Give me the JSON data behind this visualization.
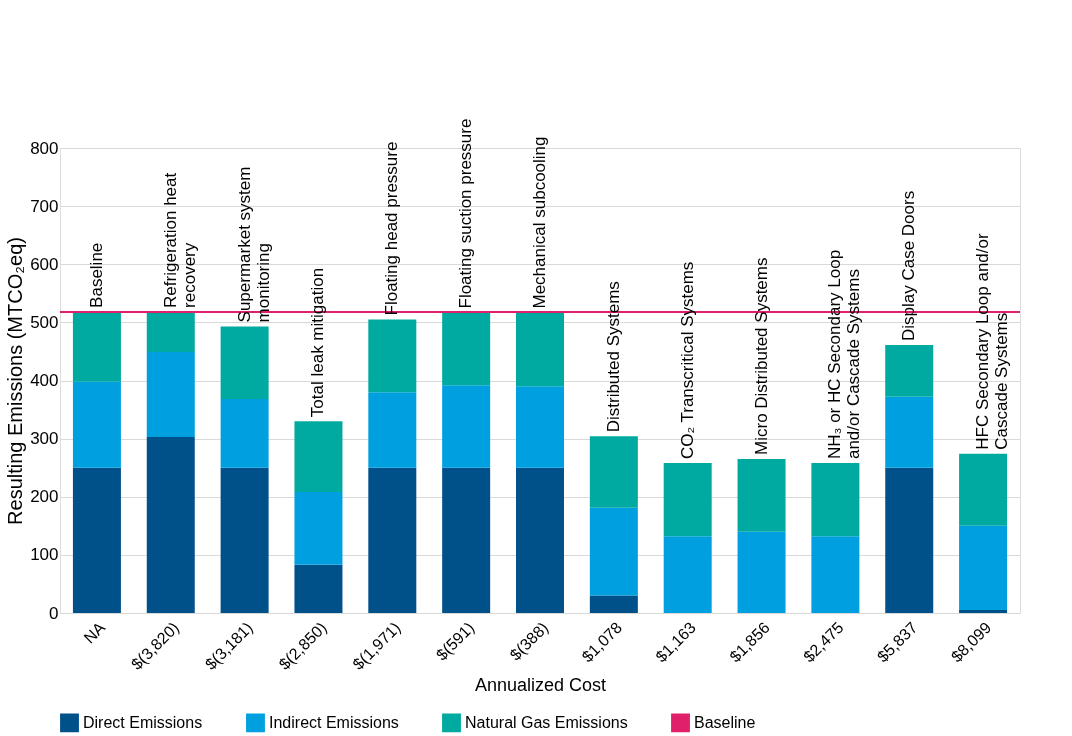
{
  "chart_data": {
    "type": "bar",
    "stacked": true,
    "xlabel": "Annualized  Cost",
    "ylabel": "Resulting  Emissions (MTCO₂eq)",
    "categories": [
      "NA",
      "$(3,820)",
      "$(3,181)",
      "$(2,850)",
      "$(1,971)",
      "$(591)",
      "$(388)",
      "$1,078",
      "$1,163",
      "$1,856",
      "$2,475",
      "$5,837",
      "$8,099"
    ],
    "series": [
      {
        "name": "Direct Emissions",
        "color": "#00508a",
        "values": [
          250,
          303,
          250,
          83,
          250,
          250,
          250,
          30,
          0,
          0,
          0,
          250,
          5
        ]
      },
      {
        "name": "Indirect Emissions",
        "color": "#00a0e0",
        "values": [
          148,
          146,
          118,
          125,
          130,
          142,
          140,
          151,
          132,
          140,
          132,
          122,
          145
        ]
      },
      {
        "name": "Natural Gas Emissions",
        "color": "#00aaa0",
        "values": [
          120,
          69,
          125,
          122,
          125,
          125,
          127,
          123,
          126,
          125,
          126,
          89,
          124
        ]
      }
    ],
    "ref_lines": [
      {
        "axis": "y",
        "value": 518,
        "label": "Baseline",
        "color": "#e0206a"
      }
    ],
    "annotations": [
      {
        "text": "Baseline",
        "x": "NA",
        "y": 518
      },
      {
        "text": "Refrigeration heat\nrecovery",
        "x": "$(3,820)",
        "y": 518
      },
      {
        "text": "Supermarket system\nmonitoring",
        "x": "$(3,181)",
        "y": 493
      },
      {
        "text": "Total leak mitigation",
        "x": "$(2,850)",
        "y": 330
      },
      {
        "text": "Floating head pressure",
        "x": "$(1,971)",
        "y": 505
      },
      {
        "text": "Floating suction pressure",
        "x": "$(591)",
        "y": 517
      },
      {
        "text": "Mechanical subcooling",
        "x": "$(388)",
        "y": 517
      },
      {
        "text": "Distributed Systems",
        "x": "$1,078",
        "y": 304
      },
      {
        "text": "CO₂ Transcritical Systems",
        "x": "$1,163",
        "y": 258
      },
      {
        "text": "Micro Distributed Systems",
        "x": "$1,856",
        "y": 265
      },
      {
        "text": "NH₃ or HC Secondary Loop\nand/or Cascade Systems",
        "x": "$2,475",
        "y": 258
      },
      {
        "text": "Display Case Doors",
        "x": "$5,837",
        "y": 461
      },
      {
        "text": "HFC Secondary Loop and/or\nCascade Systems",
        "x": "$8,099",
        "y": 274
      }
    ],
    "ylim": [
      0,
      800
    ],
    "yticks": [
      0,
      100,
      200,
      300,
      400,
      500,
      600,
      700,
      800
    ],
    "grid": "y",
    "legend": "bottom"
  }
}
